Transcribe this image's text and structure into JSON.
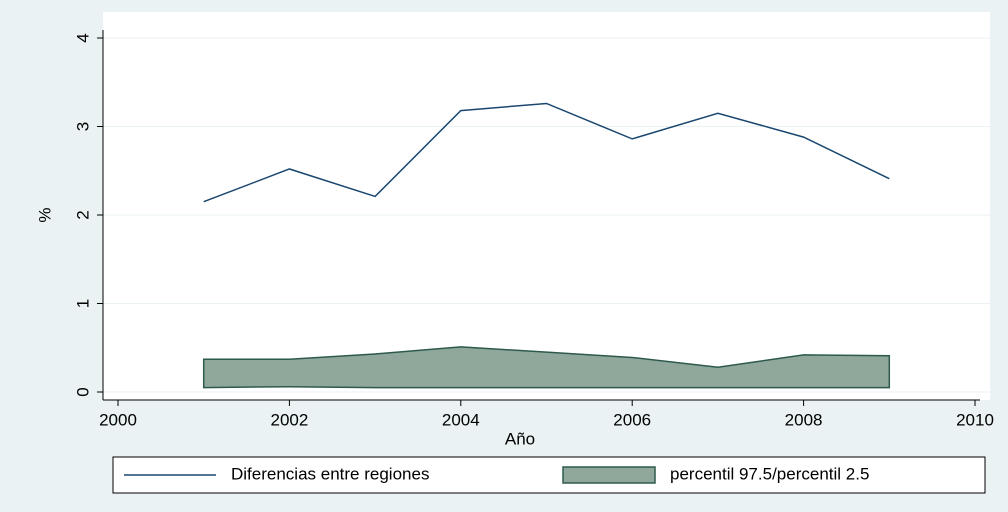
{
  "chart_data": {
    "type": "line",
    "x": [
      2001,
      2002,
      2003,
      2004,
      2005,
      2006,
      2007,
      2008,
      2009
    ],
    "series": [
      {
        "name": "Diferencias entre regiones",
        "color": "#1a476f",
        "values": [
          2.15,
          2.52,
          2.21,
          3.18,
          3.26,
          2.86,
          3.15,
          2.88,
          2.41
        ]
      },
      {
        "name": "percentil 97.5/percentil 2.5",
        "type": "range",
        "color": "#90a89c",
        "values": [
          0.37,
          0.37,
          0.43,
          0.51,
          0.45,
          0.39,
          0.28,
          0.42,
          0.41
        ],
        "lower": [
          0.05,
          0.06,
          0.05,
          0.05,
          0.05,
          0.05,
          0.05,
          0.05,
          0.05
        ]
      }
    ],
    "xlabel": "Año",
    "ylabel": "%",
    "xlim": [
      2000,
      2010
    ],
    "xticks": [
      2000,
      2002,
      2004,
      2006,
      2008,
      2010
    ],
    "ylim": [
      0,
      4
    ],
    "yticks": [
      0,
      1,
      2,
      3,
      4
    ],
    "grid": true
  }
}
